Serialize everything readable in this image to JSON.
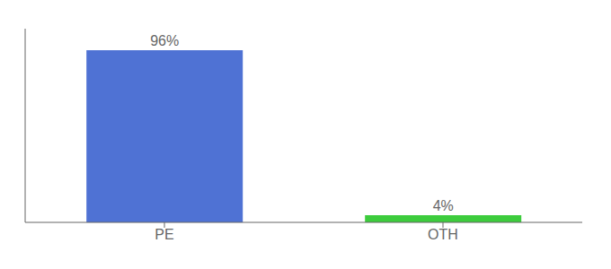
{
  "chart_data": {
    "type": "bar",
    "categories": [
      "PE",
      "OTH"
    ],
    "values": [
      96,
      4
    ],
    "value_labels": [
      "96%",
      "4%"
    ],
    "colors": [
      "#4f72d4",
      "#3dcc3d"
    ],
    "ylim": [
      0,
      108
    ],
    "data_labels": true,
    "tick_labels": "x",
    "grid": false
  }
}
